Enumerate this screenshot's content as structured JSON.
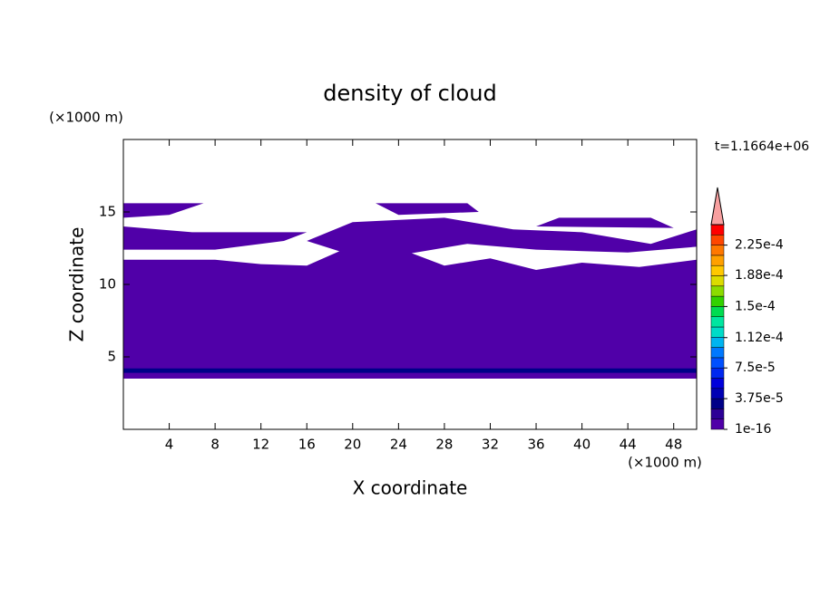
{
  "chart_data": {
    "type": "contour",
    "title": "density of cloud",
    "x_label": "X coordinate",
    "y_label": "Z coordinate",
    "x_unit": "(×1000 m)",
    "y_unit": "(×1000 m)",
    "annotation": "t=1.1664e+06",
    "xlim": [
      0,
      50
    ],
    "xticks": [
      4,
      8,
      12,
      16,
      20,
      24,
      28,
      32,
      36,
      40,
      44,
      48
    ],
    "ylim": [
      0,
      20
    ],
    "yticks": [
      5,
      10,
      15
    ],
    "colorbar": {
      "clim": [
        1e-16,
        0.00025
      ],
      "ticks": [
        {
          "value": 1e-16,
          "label": "1e-16"
        },
        {
          "value": 3.75e-05,
          "label": "3.75e-5"
        },
        {
          "value": 7.5e-05,
          "label": "7.5e-5"
        },
        {
          "value": 0.000112,
          "label": "1.12e-4"
        },
        {
          "value": 0.00015,
          "label": "1.5e-4"
        },
        {
          "value": 0.000188,
          "label": "1.88e-4"
        },
        {
          "value": 0.000225,
          "label": "2.25e-4"
        }
      ],
      "colors": [
        "#5000a8",
        "#2c0096",
        "#000088",
        "#0000b4",
        "#0000dc",
        "#0028f0",
        "#0050ff",
        "#0078ff",
        "#00b4f0",
        "#00dcc8",
        "#00e6a0",
        "#00dc50",
        "#32d200",
        "#8cdc00",
        "#dcdc00",
        "#ffc800",
        "#ffa000",
        "#ff7800",
        "#ff4600",
        "#ff0000"
      ],
      "extend_color": "#f8a0a0"
    },
    "regions": [
      {
        "level": 0,
        "points": [
          [
            0,
            3.5
          ],
          [
            50,
            3.5
          ],
          [
            50,
            11.7
          ],
          [
            45,
            11.2
          ],
          [
            40,
            11.5
          ],
          [
            36,
            11
          ],
          [
            32,
            11.8
          ],
          [
            28,
            11.3
          ],
          [
            24,
            12.5
          ],
          [
            20,
            12.7
          ],
          [
            16,
            11.3
          ],
          [
            12,
            11.4
          ],
          [
            8,
            11.7
          ],
          [
            0,
            11.7
          ]
        ]
      },
      {
        "level": 0,
        "points": [
          [
            0,
            12.4
          ],
          [
            8,
            12.4
          ],
          [
            14,
            13.0
          ],
          [
            16,
            13.6
          ],
          [
            6,
            13.6
          ],
          [
            0,
            14.0
          ]
        ]
      },
      {
        "level": 0,
        "points": [
          [
            16,
            13.0
          ],
          [
            20,
            14.3
          ],
          [
            28,
            14.6
          ],
          [
            34,
            13.8
          ],
          [
            40,
            13.6
          ],
          [
            46,
            12.8
          ],
          [
            50,
            13.8
          ],
          [
            50,
            12.6
          ],
          [
            44,
            12.2
          ],
          [
            36,
            12.4
          ],
          [
            30,
            12.8
          ],
          [
            24,
            12.0
          ],
          [
            20,
            12.0
          ]
        ]
      },
      {
        "level": 0,
        "points": [
          [
            0,
            14.6
          ],
          [
            4,
            14.8
          ],
          [
            7,
            15.6
          ],
          [
            0,
            15.6
          ]
        ]
      },
      {
        "level": 0,
        "points": [
          [
            22,
            15.6
          ],
          [
            30,
            15.6
          ],
          [
            31,
            15.0
          ],
          [
            24,
            14.8
          ]
        ]
      },
      {
        "level": 0,
        "points": [
          [
            38,
            14.6
          ],
          [
            46,
            14.6
          ],
          [
            48,
            13.9
          ],
          [
            36,
            14.0
          ]
        ]
      },
      {
        "level": 2,
        "points": [
          [
            0,
            3.9
          ],
          [
            50,
            3.9
          ],
          [
            50,
            4.2
          ],
          [
            0,
            4.2
          ]
        ]
      }
    ]
  }
}
